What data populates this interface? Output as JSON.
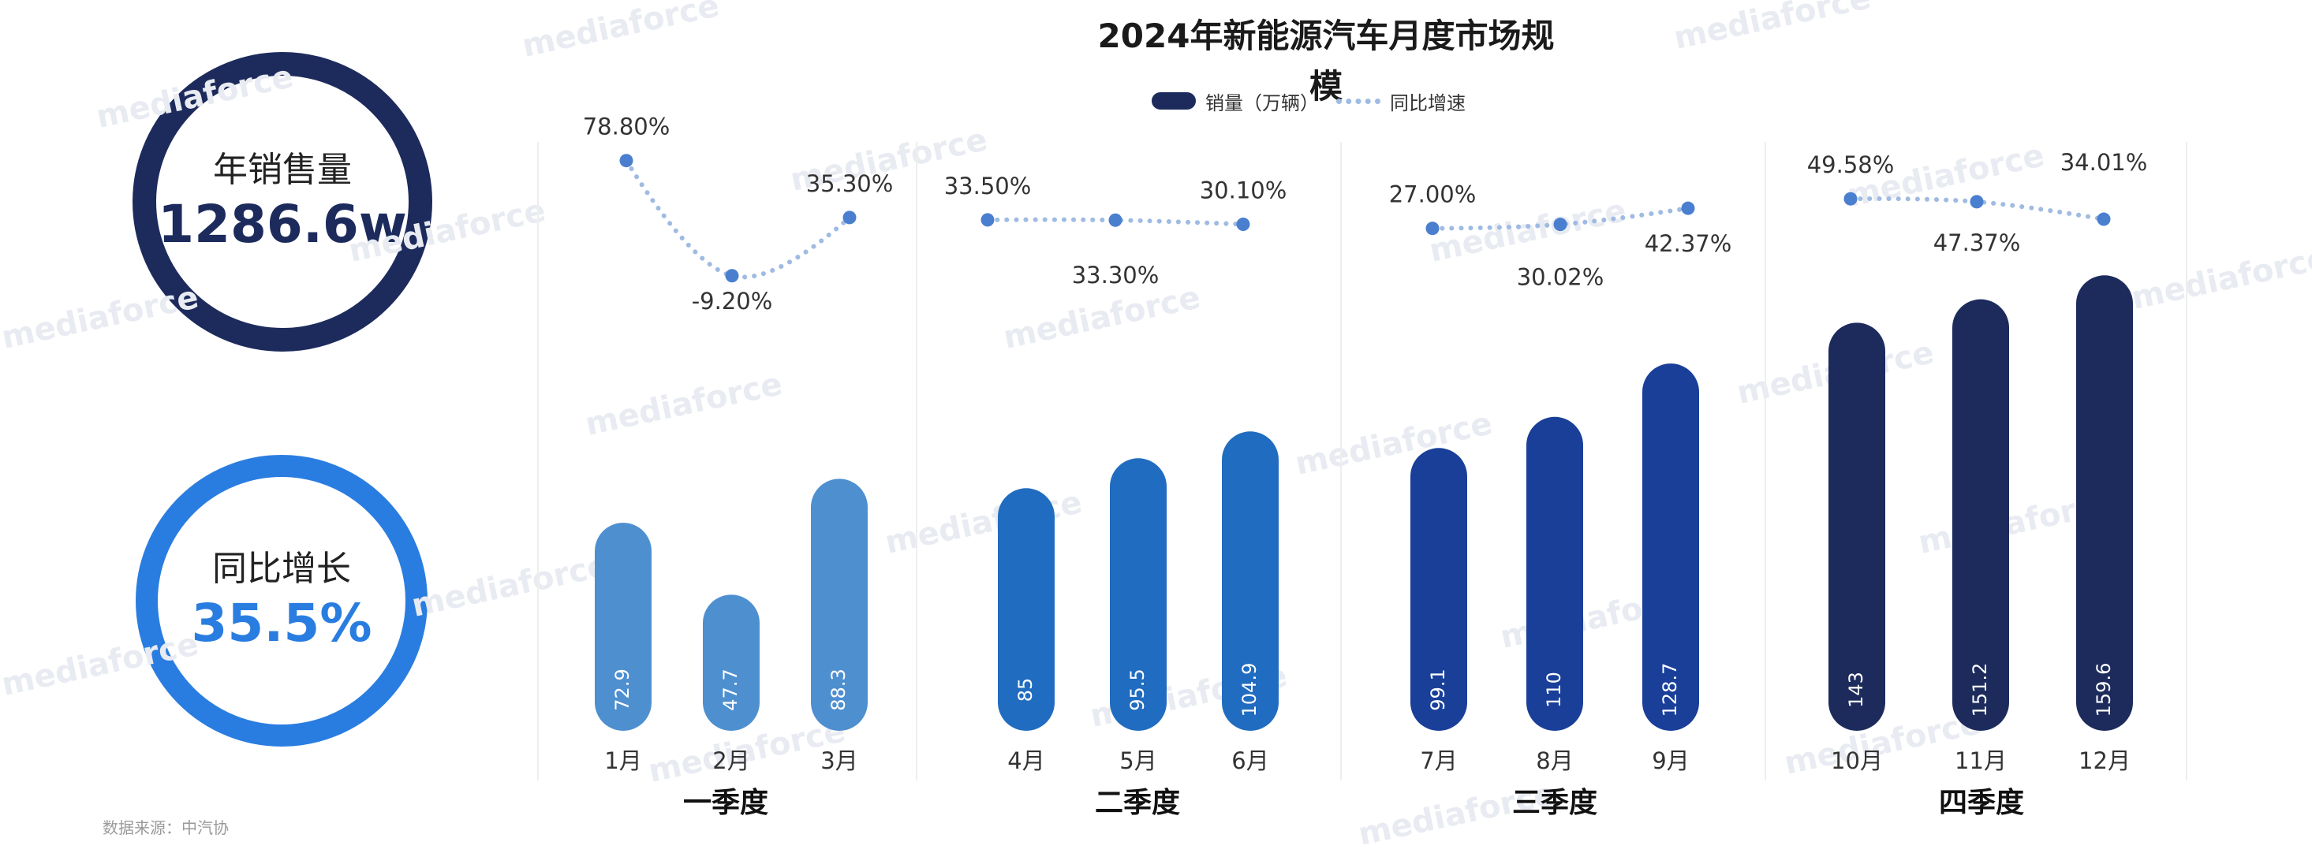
{
  "kpis": {
    "annual_sales": {
      "label": "年销售量",
      "value": "1286.6w"
    },
    "yoy_growth": {
      "label": "同比增长",
      "value": "35.5%"
    }
  },
  "watermark": "mediaforce",
  "footnote": "数据来源：中汽协",
  "colors": {
    "q1": "#4e8fd0",
    "q2": "#206cc0",
    "q3": "#193f99",
    "q4": "#1d2b5c",
    "growth_line": "#9fbbe2",
    "growth_dot": "#4a7fcf",
    "sales_ring": "#1d2b5c",
    "growth_ring": "#2a7de0"
  },
  "chart_data": {
    "type": "bar",
    "title": "2024年新能源汽车月度市场规模",
    "legend": {
      "position": "top",
      "entries": [
        "销量（万辆）",
        "同比增速"
      ]
    },
    "categories": [
      "1月",
      "2月",
      "3月",
      "4月",
      "5月",
      "6月",
      "7月",
      "8月",
      "9月",
      "10月",
      "11月",
      "12月"
    ],
    "groups": [
      {
        "label": "一季度",
        "months": [
          0,
          1,
          2
        ]
      },
      {
        "label": "二季度",
        "months": [
          3,
          4,
          5
        ]
      },
      {
        "label": "三季度",
        "months": [
          6,
          7,
          8
        ]
      },
      {
        "label": "四季度",
        "months": [
          9,
          10,
          11
        ]
      }
    ],
    "series": [
      {
        "name": "销量（万辆）",
        "type": "bar",
        "values": [
          72.9,
          47.7,
          88.3,
          85,
          95.5,
          104.9,
          99.1,
          110,
          128.7,
          143,
          151.2,
          159.6
        ],
        "value_labels": [
          "72.9",
          "47.7",
          "88.3",
          "85",
          "95.5",
          "104.9",
          "99.1",
          "110",
          "128.7",
          "143",
          "151.2",
          "159.6"
        ]
      },
      {
        "name": "同比增速",
        "type": "line",
        "values": [
          78.8,
          -9.2,
          35.3,
          33.5,
          33.3,
          30.1,
          27.0,
          30.02,
          42.37,
          49.58,
          47.37,
          34.01
        ],
        "value_labels": [
          "78.80%",
          "-9.20%",
          "35.30%",
          "33.50%",
          "33.30%",
          "30.10%",
          "27.00%",
          "30.02%",
          "42.37%",
          "49.58%",
          "47.37%",
          "34.01%"
        ]
      }
    ],
    "grid": false
  }
}
